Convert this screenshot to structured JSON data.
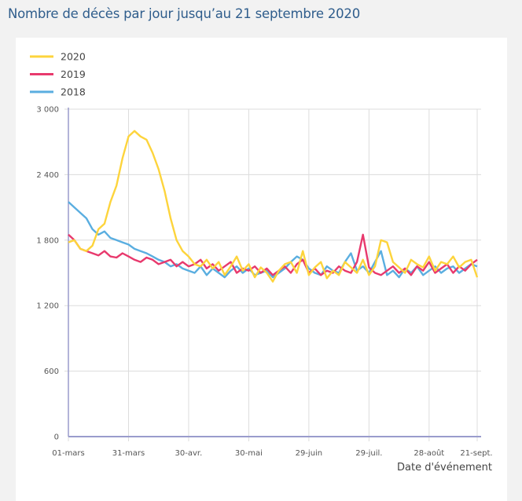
{
  "title": "Nombre de décès par jour jusqu’au 21 septembre 2020",
  "chart_data": {
    "type": "line",
    "title": "Nombre de décès par jour jusqu’au 21 septembre 2020",
    "xlabel": "Date d'événement",
    "ylabel": "",
    "x_unit": "days since 01-mars (sampled every 3 days)",
    "x": [
      0,
      3,
      6,
      9,
      12,
      15,
      18,
      21,
      24,
      27,
      30,
      33,
      36,
      39,
      42,
      45,
      48,
      51,
      54,
      57,
      60,
      63,
      66,
      69,
      72,
      75,
      78,
      81,
      84,
      87,
      90,
      93,
      96,
      99,
      102,
      105,
      108,
      111,
      114,
      117,
      120,
      123,
      126,
      129,
      132,
      135,
      138,
      141,
      144,
      147,
      150,
      153,
      156,
      159,
      162,
      165,
      168,
      171,
      174,
      177,
      180,
      183,
      186,
      189,
      192,
      195,
      198,
      201,
      204
    ],
    "xlim": [
      0,
      204
    ],
    "ylim": [
      0,
      3000
    ],
    "yticks": [
      0,
      600,
      1200,
      1800,
      2400,
      3000
    ],
    "ytick_labels": [
      "0",
      "600",
      "1 200",
      "1 800",
      "2 400",
      "3 000"
    ],
    "xticks": [
      0,
      30,
      60,
      90,
      120,
      150,
      180,
      204
    ],
    "xtick_labels": [
      "01-mars",
      "31-mars",
      "30-avr.",
      "30-mai",
      "29-juin",
      "29-juil.",
      "28-août",
      "21-sept."
    ],
    "grid": true,
    "legend_position": "top-left",
    "series": [
      {
        "name": "2020",
        "color": "#fdd43c",
        "values": [
          1780,
          1800,
          1720,
          1700,
          1750,
          1900,
          1950,
          2150,
          2300,
          2550,
          2750,
          2800,
          2750,
          2720,
          2600,
          2450,
          2250,
          2000,
          1800,
          1700,
          1650,
          1580,
          1560,
          1620,
          1540,
          1600,
          1480,
          1560,
          1650,
          1520,
          1580,
          1460,
          1550,
          1500,
          1420,
          1520,
          1580,
          1600,
          1500,
          1700,
          1480,
          1550,
          1600,
          1450,
          1520,
          1480,
          1600,
          1550,
          1500,
          1620,
          1480,
          1560,
          1800,
          1780,
          1600,
          1550,
          1500,
          1620,
          1580,
          1550,
          1650,
          1520,
          1600,
          1580,
          1650,
          1550,
          1600,
          1620,
          1460
        ]
      },
      {
        "name": "2019",
        "color": "#e8396d",
        "values": [
          1850,
          1800,
          1720,
          1700,
          1680,
          1660,
          1700,
          1650,
          1640,
          1680,
          1650,
          1620,
          1600,
          1640,
          1620,
          1580,
          1600,
          1620,
          1560,
          1600,
          1560,
          1580,
          1620,
          1540,
          1580,
          1520,
          1560,
          1600,
          1500,
          1540,
          1520,
          1560,
          1500,
          1540,
          1480,
          1520,
          1560,
          1500,
          1580,
          1620,
          1500,
          1540,
          1480,
          1520,
          1500,
          1560,
          1520,
          1500,
          1600,
          1850,
          1550,
          1500,
          1480,
          1520,
          1560,
          1500,
          1540,
          1480,
          1560,
          1520,
          1600,
          1500,
          1540,
          1580,
          1500,
          1560,
          1520,
          1580,
          1620
        ]
      },
      {
        "name": "2018",
        "color": "#5aaee0",
        "values": [
          2150,
          2100,
          2050,
          2000,
          1900,
          1850,
          1880,
          1820,
          1800,
          1780,
          1760,
          1720,
          1700,
          1680,
          1650,
          1620,
          1600,
          1560,
          1580,
          1540,
          1520,
          1500,
          1560,
          1480,
          1540,
          1500,
          1460,
          1520,
          1560,
          1500,
          1540,
          1480,
          1500,
          1520,
          1460,
          1500,
          1540,
          1600,
          1650,
          1620,
          1540,
          1500,
          1480,
          1560,
          1520,
          1500,
          1600,
          1680,
          1520,
          1560,
          1500,
          1600,
          1700,
          1480,
          1520,
          1460,
          1540,
          1500,
          1560,
          1480,
          1520,
          1560,
          1500,
          1540,
          1560,
          1500,
          1540,
          1580,
          1560
        ]
      }
    ]
  }
}
